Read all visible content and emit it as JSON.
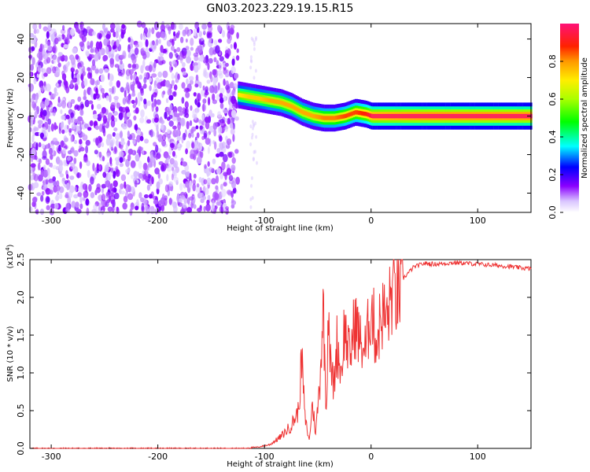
{
  "title": "GN03.2023.229.19.15.R15",
  "chart_data": [
    {
      "type": "heatmap",
      "xlabel": "Height of straight line (km)",
      "ylabel": "Frequency (Hz)",
      "xlim": [
        -320,
        150
      ],
      "ylim": [
        -50,
        48
      ],
      "x_ticks": [
        "-300",
        "-200",
        "-100",
        "0",
        "100"
      ],
      "x_tick_values": [
        -300,
        -200,
        -100,
        0,
        100
      ],
      "y_ticks": [
        "40",
        "20",
        "0",
        "-20",
        "-40"
      ],
      "y_tick_values": [
        40,
        20,
        0,
        -20,
        -40
      ],
      "colorbar": {
        "label": "Normalized spectral amplitude",
        "ticks": [
          "0.0",
          "0.2",
          "0.4",
          "0.6",
          "0.8"
        ],
        "tick_values": [
          0.0,
          0.2,
          0.4,
          0.6,
          0.8
        ],
        "range": [
          0,
          1
        ]
      },
      "noise_region_x": [
        -320,
        -125
      ],
      "signal_track": {
        "x": [
          -125,
          -115,
          -105,
          -95,
          -85,
          -75,
          -65,
          -55,
          -45,
          -35,
          -25,
          -15,
          -5,
          0,
          50,
          100,
          150
        ],
        "freq": [
          11,
          10,
          9,
          8,
          7,
          5,
          2,
          0,
          -1,
          -1,
          0,
          2,
          1,
          0,
          0,
          0,
          0
        ],
        "amplitude": [
          0.6,
          0.65,
          0.65,
          0.7,
          0.7,
          0.7,
          0.7,
          0.7,
          0.75,
          0.75,
          0.8,
          0.8,
          0.85,
          0.95,
          1.0,
          1.0,
          1.0
        ]
      }
    },
    {
      "type": "line",
      "xlabel": "Height of straight line (km)",
      "ylabel": "SNR (10 * v/v)",
      "y_scale_label": "(x10",
      "y_scale_exp": "4",
      "y_scale_close": ")",
      "xlim": [
        -320,
        150
      ],
      "ylim": [
        0,
        2.5
      ],
      "x_ticks": [
        "-300",
        "-200",
        "-100",
        "0",
        "100"
      ],
      "x_tick_values": [
        -300,
        -200,
        -100,
        0,
        100
      ],
      "y_ticks": [
        "0.0",
        "0.5",
        "1.0",
        "1.5",
        "2.0",
        "2.5"
      ],
      "y_tick_values": [
        0,
        0.5,
        1.0,
        1.5,
        2.0,
        2.5
      ],
      "color": "#ee3333",
      "series": [
        {
          "x": [
            -320,
            -120,
            -105,
            -95,
            -85,
            -75,
            -68,
            -65,
            -62,
            -58,
            -55,
            -52,
            -48,
            -45,
            -42,
            -40,
            -38,
            -35,
            -32,
            -28,
            -25,
            -20,
            -15,
            -10,
            -5,
            0,
            5,
            10,
            15,
            20,
            25,
            30,
            40,
            50,
            60,
            70,
            80,
            90,
            100,
            110,
            120,
            130,
            140,
            150
          ],
          "y": [
            0.0,
            0.0,
            0.02,
            0.05,
            0.15,
            0.3,
            0.5,
            1.2,
            0.4,
            0.1,
            0.6,
            0.2,
            0.9,
            1.9,
            0.5,
            2.0,
            1.1,
            0.8,
            1.4,
            1.0,
            1.6,
            1.2,
            1.7,
            1.4,
            1.3,
            1.9,
            1.4,
            1.8,
            1.7,
            2.1,
            2.0,
            2.25,
            2.4,
            2.45,
            2.44,
            2.45,
            2.46,
            2.45,
            2.44,
            2.43,
            2.42,
            2.41,
            2.39,
            2.38
          ]
        }
      ]
    }
  ]
}
